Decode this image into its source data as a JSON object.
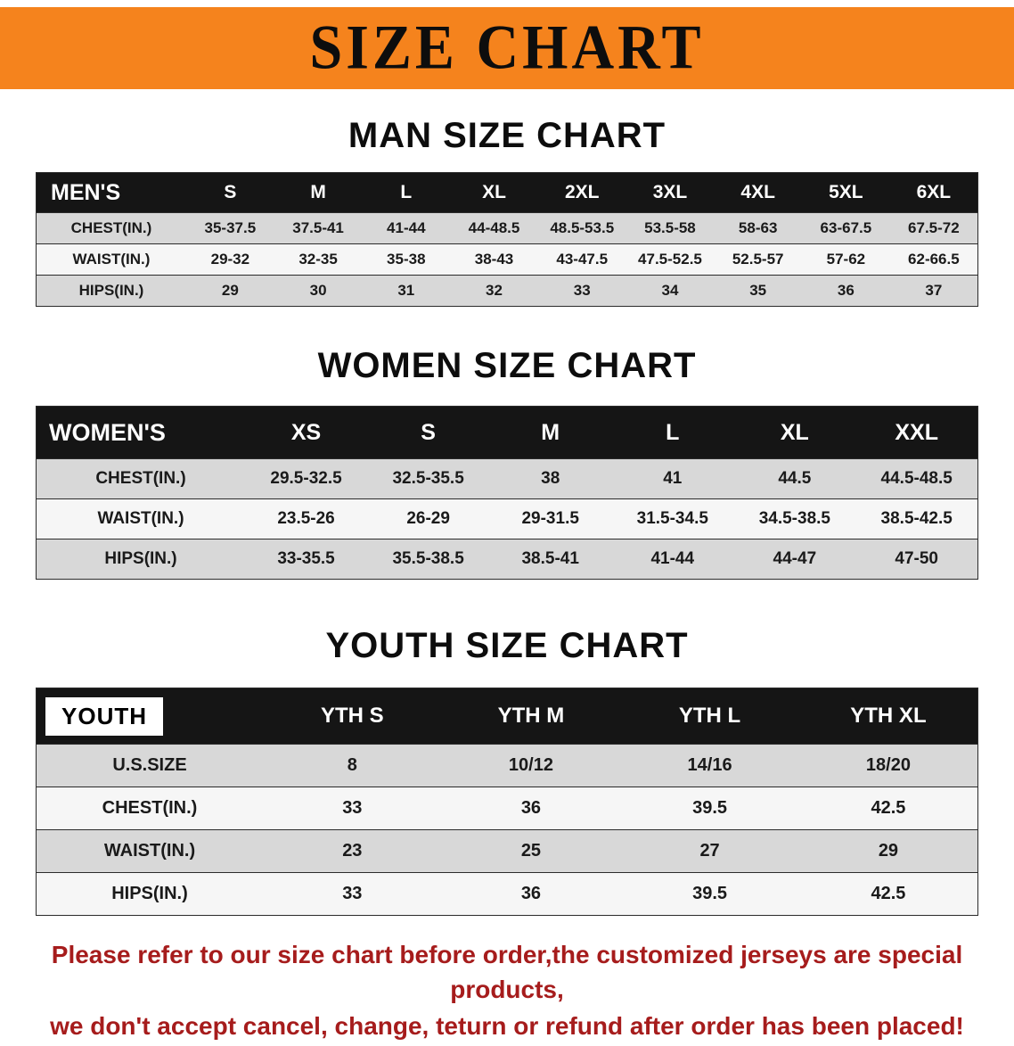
{
  "banner": {
    "title": "SIZE CHART"
  },
  "sections": {
    "men": {
      "heading": "MAN SIZE CHART",
      "table": {
        "header": [
          "MEN'S",
          "S",
          "M",
          "L",
          "XL",
          "2XL",
          "3XL",
          "4XL",
          "5XL",
          "6XL"
        ],
        "rows": [
          {
            "label": "CHEST(IN.)",
            "values": [
              "35-37.5",
              "37.5-41",
              "41-44",
              "44-48.5",
              "48.5-53.5",
              "53.5-58",
              "58-63",
              "63-67.5",
              "67.5-72"
            ]
          },
          {
            "label": "WAIST(IN.)",
            "values": [
              "29-32",
              "32-35",
              "35-38",
              "38-43",
              "43-47.5",
              "47.5-52.5",
              "52.5-57",
              "57-62",
              "62-66.5"
            ]
          },
          {
            "label": "HIPS(IN.)",
            "values": [
              "29",
              "30",
              "31",
              "32",
              "33",
              "34",
              "35",
              "36",
              "37"
            ]
          }
        ]
      }
    },
    "women": {
      "heading": "WOMEN SIZE CHART",
      "table": {
        "header": [
          "WOMEN'S",
          "XS",
          "S",
          "M",
          "L",
          "XL",
          "XXL"
        ],
        "rows": [
          {
            "label": "CHEST(IN.)",
            "values": [
              "29.5-32.5",
              "32.5-35.5",
              "38",
              "41",
              "44.5",
              "44.5-48.5"
            ]
          },
          {
            "label": "WAIST(IN.)",
            "values": [
              "23.5-26",
              "26-29",
              "29-31.5",
              "31.5-34.5",
              "34.5-38.5",
              "38.5-42.5"
            ]
          },
          {
            "label": "HIPS(IN.)",
            "values": [
              "33-35.5",
              "35.5-38.5",
              "38.5-41",
              "41-44",
              "44-47",
              "47-50"
            ]
          }
        ]
      }
    },
    "youth": {
      "heading": "YOUTH SIZE CHART",
      "table": {
        "header": [
          "YOUTH",
          "YTH S",
          "YTH M",
          "YTH L",
          "YTH XL"
        ],
        "rows": [
          {
            "label": "U.S.SIZE",
            "values": [
              "8",
              "10/12",
              "14/16",
              "18/20"
            ]
          },
          {
            "label": "CHEST(IN.)",
            "values": [
              "33",
              "36",
              "39.5",
              "42.5"
            ]
          },
          {
            "label": "WAIST(IN.)",
            "values": [
              "23",
              "25",
              "27",
              "29"
            ]
          },
          {
            "label": "HIPS(IN.)",
            "values": [
              "33",
              "36",
              "39.5",
              "42.5"
            ]
          }
        ]
      }
    }
  },
  "footer": {
    "line1": "Please refer to our size chart before order,the customized jerseys are special products,",
    "line2": "we don't accept cancel, change, teturn or refund after order has been placed!"
  },
  "colors": {
    "banner_orange": "#F5831D",
    "table_header_black": "#151515",
    "row_gray": "#D8D8D8",
    "row_light": "#F6F6F6",
    "notice_red": "#A61C1C"
  }
}
